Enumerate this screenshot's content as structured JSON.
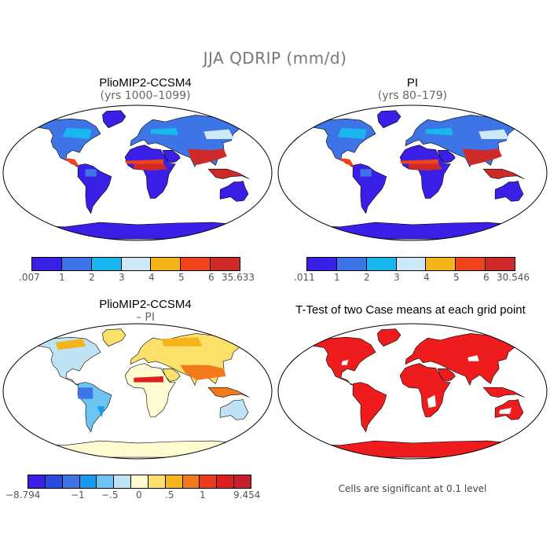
{
  "figure": {
    "title": "JJA QDRIP (mm/d)"
  },
  "panels": [
    {
      "title": "PlioMIP2-CCSM4",
      "subtitle": "(yrs 1000–1099)",
      "colorbar": {
        "labels": [
          ".007",
          "1",
          "2",
          "3",
          "4",
          "5",
          "6",
          "35.633"
        ],
        "colors": [
          "#3a1fe6",
          "#3d74e6",
          "#1ab6ef",
          "#cde8f7",
          "#f6b31a",
          "#f0421c",
          "#cf2a2a"
        ]
      }
    },
    {
      "title": "PI",
      "subtitle": "(yrs 80–179)",
      "colorbar": {
        "labels": [
          ".011",
          "1",
          "2",
          "3",
          "4",
          "5",
          "6",
          "30.546"
        ],
        "colors": [
          "#3a1fe6",
          "#3d74e6",
          "#1ab6ef",
          "#cde8f7",
          "#f6b31a",
          "#f0421c",
          "#cf2a2a"
        ]
      }
    },
    {
      "title": "PlioMIP2-CCSM4",
      "subtitle": "– PI",
      "colorbar": {
        "labels": [
          "−8.794",
          "−1",
          "−.5",
          "0",
          ".5",
          "1",
          "9.454"
        ],
        "colors": [
          "#3a1fe6",
          "#2a4ae0",
          "#3d74e6",
          "#1a9aef",
          "#6cc4f2",
          "#bfe2f5",
          "#fffbd0",
          "#fbe06a",
          "#f6b31a",
          "#f37a1a",
          "#ee3a1c",
          "#dc1f1f",
          "#c81f2a"
        ]
      }
    },
    {
      "title": "T-Test of two Case means at each grid point",
      "footnote": "Cells are significant at 0.1 level"
    }
  ]
}
